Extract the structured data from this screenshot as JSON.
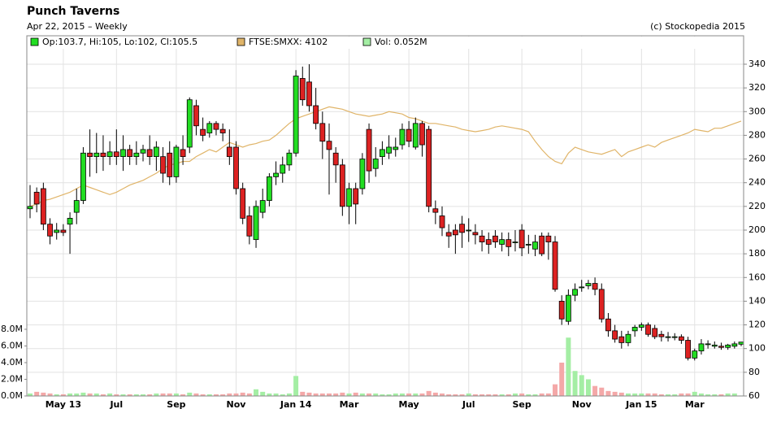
{
  "chart_data": {
    "type": "candlestick",
    "title": "Punch Taverns",
    "subtitle": "Apr 22, 2015 – Weekly",
    "credit": "(c) Stockopedia 2015",
    "ohlc_label": "Op:103.7, Hi:105, Lo:102, Cl:105.5",
    "up_color": "#22dd22",
    "down_color": "#dd2222",
    "grid": true,
    "ylim": [
      60,
      364
    ],
    "yticks": [
      60,
      80,
      100,
      120,
      140,
      160,
      180,
      200,
      220,
      240,
      260,
      280,
      300,
      320,
      340
    ],
    "categories": [
      null,
      null,
      null,
      null,
      null,
      "May 13",
      null,
      null,
      null,
      null,
      null,
      null,
      null,
      "Jul",
      null,
      null,
      null,
      null,
      null,
      null,
      null,
      null,
      "Sep",
      null,
      null,
      null,
      null,
      null,
      null,
      null,
      null,
      "Nov",
      null,
      null,
      null,
      null,
      null,
      null,
      null,
      null,
      "Jan 14",
      null,
      null,
      null,
      null,
      null,
      null,
      null,
      "Mar",
      null,
      null,
      null,
      null,
      null,
      null,
      null,
      null,
      "May",
      null,
      null,
      null,
      null,
      null,
      null,
      null,
      null,
      "Jul",
      null,
      null,
      null,
      null,
      null,
      null,
      null,
      "Sep",
      null,
      null,
      null,
      null,
      null,
      null,
      null,
      null,
      "Nov",
      null,
      null,
      null,
      null,
      null,
      null,
      null,
      null,
      "Jan 15",
      null,
      null,
      null,
      null,
      null,
      null,
      null,
      "Mar",
      null,
      null,
      null,
      null,
      null,
      null,
      null
    ],
    "open": [
      218,
      232,
      235,
      205,
      198,
      200,
      205,
      215,
      225,
      265,
      262,
      265,
      262,
      266,
      262,
      268,
      262,
      265,
      268,
      262,
      262,
      265,
      245,
      268,
      270,
      305,
      285,
      282,
      290,
      285,
      270,
      270,
      235,
      212,
      192,
      215,
      225,
      245,
      248,
      255,
      265,
      328,
      325,
      305,
      290,
      275,
      265,
      255,
      220,
      235,
      235,
      285,
      252,
      262,
      265,
      268,
      272,
      285,
      270,
      290,
      285,
      218,
      212,
      198,
      200,
      205,
      200,
      198,
      195,
      192,
      195,
      188,
      192,
      190,
      200,
      188,
      184,
      195,
      195,
      190,
      140,
      123,
      145,
      152,
      153,
      155,
      150,
      125,
      115,
      110,
      105,
      115,
      118,
      120,
      117,
      112,
      110,
      110,
      110,
      107,
      92,
      98,
      104,
      102,
      102,
      101,
      102,
      103.7
    ],
    "high": [
      238,
      236,
      240,
      210,
      206,
      205,
      215,
      235,
      270,
      285,
      282,
      280,
      275,
      285,
      280,
      272,
      275,
      272,
      280,
      275,
      270,
      275,
      272,
      280,
      312,
      310,
      295,
      292,
      292,
      290,
      285,
      275,
      240,
      220,
      225,
      235,
      248,
      258,
      262,
      268,
      335,
      338,
      340,
      320,
      300,
      290,
      270,
      260,
      240,
      240,
      265,
      290,
      270,
      275,
      280,
      278,
      290,
      292,
      295,
      292,
      288,
      225,
      220,
      205,
      205,
      212,
      210,
      205,
      200,
      198,
      200,
      198,
      198,
      200,
      205,
      196,
      196,
      198,
      198,
      195,
      145,
      150,
      155,
      158,
      158,
      160,
      155,
      130,
      120,
      115,
      115,
      120,
      122,
      122,
      120,
      115,
      114,
      113,
      112,
      110,
      100,
      108,
      107,
      106,
      105,
      104,
      106,
      105
    ],
    "low": [
      210,
      215,
      200,
      188,
      192,
      195,
      180,
      205,
      222,
      245,
      248,
      250,
      255,
      255,
      250,
      255,
      255,
      258,
      255,
      250,
      240,
      238,
      240,
      255,
      265,
      280,
      275,
      278,
      280,
      275,
      255,
      230,
      205,
      188,
      185,
      210,
      220,
      238,
      240,
      250,
      262,
      305,
      300,
      285,
      260,
      230,
      240,
      212,
      205,
      205,
      230,
      240,
      245,
      255,
      260,
      262,
      268,
      270,
      268,
      262,
      215,
      205,
      195,
      185,
      180,
      185,
      190,
      188,
      182,
      180,
      185,
      182,
      178,
      182,
      178,
      180,
      178,
      178,
      175,
      148,
      120,
      120,
      140,
      148,
      150,
      145,
      122,
      110,
      105,
      100,
      102,
      110,
      115,
      110,
      108,
      106,
      106,
      107,
      104,
      90,
      90,
      95,
      100,
      100,
      99,
      99,
      100,
      102
    ],
    "close": [
      220,
      222,
      205,
      195,
      200,
      198,
      210,
      225,
      265,
      262,
      265,
      262,
      266,
      262,
      268,
      262,
      265,
      268,
      262,
      270,
      248,
      245,
      270,
      262,
      310,
      288,
      280,
      290,
      285,
      282,
      262,
      235,
      210,
      195,
      220,
      225,
      245,
      248,
      255,
      265,
      330,
      310,
      305,
      290,
      275,
      268,
      255,
      220,
      235,
      222,
      260,
      250,
      260,
      268,
      270,
      270,
      285,
      275,
      290,
      272,
      220,
      215,
      202,
      195,
      196,
      198,
      200,
      196,
      190,
      188,
      190,
      192,
      186,
      190,
      185,
      188,
      190,
      180,
      190,
      150,
      125,
      145,
      150,
      152,
      155,
      150,
      125,
      115,
      108,
      105,
      112,
      118,
      120,
      112,
      110,
      110,
      110,
      110,
      107,
      92,
      98,
      104,
      104,
      103,
      101,
      103,
      104,
      105.5
    ],
    "overlay": {
      "label": "FTSE:SMXX: 4102",
      "color": "#e0b468",
      "values": [
        220,
        222,
        225,
        226,
        228,
        230,
        232,
        235,
        238,
        236,
        234,
        232,
        230,
        232,
        235,
        238,
        240,
        242,
        245,
        248,
        252,
        255,
        256,
        258,
        258,
        262,
        265,
        268,
        266,
        270,
        274,
        272,
        270,
        272,
        273,
        275,
        276,
        280,
        285,
        290,
        294,
        296,
        298,
        300,
        302,
        304,
        303,
        302,
        300,
        298,
        297,
        296,
        297,
        298,
        300,
        299,
        298,
        295,
        294,
        292,
        290,
        290,
        289,
        288,
        287,
        285,
        284,
        283,
        284,
        285,
        287,
        288,
        287,
        286,
        285,
        283,
        275,
        268,
        262,
        258,
        256,
        265,
        270,
        268,
        266,
        265,
        264,
        266,
        268,
        262,
        266,
        268,
        270,
        272,
        270,
        274,
        276,
        278,
        280,
        282,
        285,
        284,
        283,
        286,
        286,
        288,
        290,
        292
      ]
    },
    "volume": {
      "label": "Vol: 0.052M",
      "up_color": "#a4eea4",
      "down_color": "#f4a8a8",
      "legend_color": "#a4eea4",
      "y2lim": [
        0,
        43.2
      ],
      "y2ticks": [
        {
          "value": 0,
          "label": "0.0M"
        },
        {
          "value": 2,
          "label": "2.0M"
        },
        {
          "value": 4,
          "label": "4.0M"
        },
        {
          "value": 6,
          "label": "6.0M"
        },
        {
          "value": 8,
          "label": "8.0M"
        }
      ],
      "values": [
        0.3,
        0.5,
        0.4,
        0.3,
        0.2,
        0.2,
        0.3,
        0.3,
        0.4,
        0.3,
        0.3,
        0.2,
        0.3,
        0.2,
        0.2,
        0.2,
        0.2,
        0.2,
        0.2,
        0.3,
        0.3,
        0.3,
        0.3,
        0.2,
        0.4,
        0.3,
        0.2,
        0.2,
        0.2,
        0.2,
        0.3,
        0.3,
        0.4,
        0.3,
        0.8,
        0.5,
        0.3,
        0.3,
        0.2,
        0.3,
        2.4,
        0.5,
        0.4,
        0.3,
        0.3,
        0.3,
        0.3,
        0.4,
        0.3,
        0.4,
        0.3,
        0.3,
        0.3,
        0.2,
        0.2,
        0.3,
        0.3,
        0.3,
        0.3,
        0.3,
        0.6,
        0.4,
        0.3,
        0.2,
        0.2,
        0.2,
        0.3,
        0.2,
        0.2,
        0.2,
        0.2,
        0.2,
        0.2,
        0.3,
        0.3,
        0.2,
        0.2,
        0.3,
        0.3,
        1.4,
        4.0,
        7.0,
        3.0,
        2.5,
        2.0,
        1.2,
        1.0,
        0.6,
        0.5,
        0.4,
        0.3,
        0.3,
        0.3,
        0.3,
        0.3,
        0.2,
        0.2,
        0.2,
        0.3,
        0.3,
        0.5,
        0.3,
        0.2,
        0.2,
        0.2,
        0.3,
        0.3,
        0.052
      ]
    }
  }
}
